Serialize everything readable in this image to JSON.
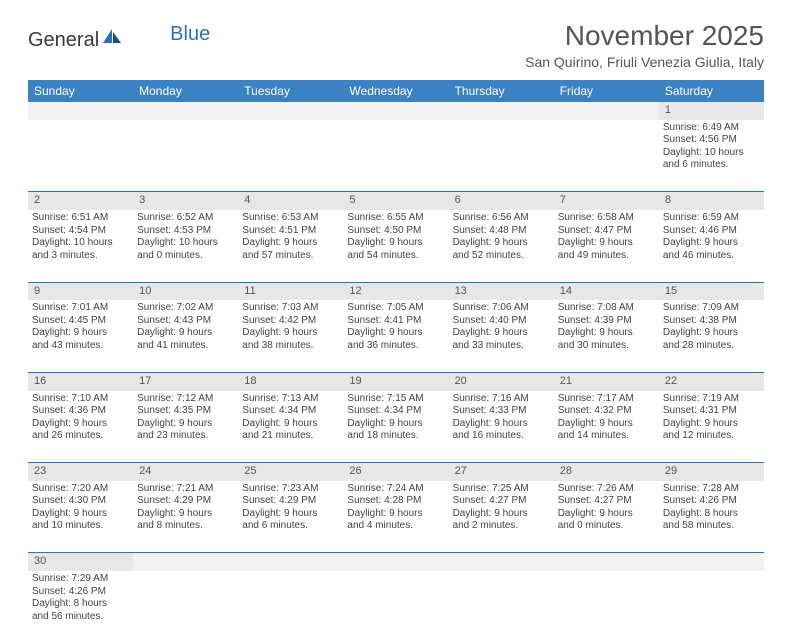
{
  "logo": {
    "general": "General",
    "blue": "Blue"
  },
  "title": "November 2025",
  "location": "San Quirino, Friuli Venezia Giulia, Italy",
  "weekdays": [
    "Sunday",
    "Monday",
    "Tuesday",
    "Wednesday",
    "Thursday",
    "Friday",
    "Saturday"
  ],
  "colors": {
    "header_bg": "#3b82c4",
    "header_text": "#ffffff",
    "border": "#2d6fb5",
    "daynum_bg": "#e7e7e7",
    "text": "#444444"
  },
  "rows": [
    [
      null,
      null,
      null,
      null,
      null,
      null,
      {
        "n": "1",
        "sunrise": "Sunrise: 6:49 AM",
        "sunset": "Sunset: 4:56 PM",
        "day1": "Daylight: 10 hours",
        "day2": "and 6 minutes."
      }
    ],
    [
      {
        "n": "2",
        "sunrise": "Sunrise: 6:51 AM",
        "sunset": "Sunset: 4:54 PM",
        "day1": "Daylight: 10 hours",
        "day2": "and 3 minutes."
      },
      {
        "n": "3",
        "sunrise": "Sunrise: 6:52 AM",
        "sunset": "Sunset: 4:53 PM",
        "day1": "Daylight: 10 hours",
        "day2": "and 0 minutes."
      },
      {
        "n": "4",
        "sunrise": "Sunrise: 6:53 AM",
        "sunset": "Sunset: 4:51 PM",
        "day1": "Daylight: 9 hours",
        "day2": "and 57 minutes."
      },
      {
        "n": "5",
        "sunrise": "Sunrise: 6:55 AM",
        "sunset": "Sunset: 4:50 PM",
        "day1": "Daylight: 9 hours",
        "day2": "and 54 minutes."
      },
      {
        "n": "6",
        "sunrise": "Sunrise: 6:56 AM",
        "sunset": "Sunset: 4:48 PM",
        "day1": "Daylight: 9 hours",
        "day2": "and 52 minutes."
      },
      {
        "n": "7",
        "sunrise": "Sunrise: 6:58 AM",
        "sunset": "Sunset: 4:47 PM",
        "day1": "Daylight: 9 hours",
        "day2": "and 49 minutes."
      },
      {
        "n": "8",
        "sunrise": "Sunrise: 6:59 AM",
        "sunset": "Sunset: 4:46 PM",
        "day1": "Daylight: 9 hours",
        "day2": "and 46 minutes."
      }
    ],
    [
      {
        "n": "9",
        "sunrise": "Sunrise: 7:01 AM",
        "sunset": "Sunset: 4:45 PM",
        "day1": "Daylight: 9 hours",
        "day2": "and 43 minutes."
      },
      {
        "n": "10",
        "sunrise": "Sunrise: 7:02 AM",
        "sunset": "Sunset: 4:43 PM",
        "day1": "Daylight: 9 hours",
        "day2": "and 41 minutes."
      },
      {
        "n": "11",
        "sunrise": "Sunrise: 7:03 AM",
        "sunset": "Sunset: 4:42 PM",
        "day1": "Daylight: 9 hours",
        "day2": "and 38 minutes."
      },
      {
        "n": "12",
        "sunrise": "Sunrise: 7:05 AM",
        "sunset": "Sunset: 4:41 PM",
        "day1": "Daylight: 9 hours",
        "day2": "and 36 minutes."
      },
      {
        "n": "13",
        "sunrise": "Sunrise: 7:06 AM",
        "sunset": "Sunset: 4:40 PM",
        "day1": "Daylight: 9 hours",
        "day2": "and 33 minutes."
      },
      {
        "n": "14",
        "sunrise": "Sunrise: 7:08 AM",
        "sunset": "Sunset: 4:39 PM",
        "day1": "Daylight: 9 hours",
        "day2": "and 30 minutes."
      },
      {
        "n": "15",
        "sunrise": "Sunrise: 7:09 AM",
        "sunset": "Sunset: 4:38 PM",
        "day1": "Daylight: 9 hours",
        "day2": "and 28 minutes."
      }
    ],
    [
      {
        "n": "16",
        "sunrise": "Sunrise: 7:10 AM",
        "sunset": "Sunset: 4:36 PM",
        "day1": "Daylight: 9 hours",
        "day2": "and 26 minutes."
      },
      {
        "n": "17",
        "sunrise": "Sunrise: 7:12 AM",
        "sunset": "Sunset: 4:35 PM",
        "day1": "Daylight: 9 hours",
        "day2": "and 23 minutes."
      },
      {
        "n": "18",
        "sunrise": "Sunrise: 7:13 AM",
        "sunset": "Sunset: 4:34 PM",
        "day1": "Daylight: 9 hours",
        "day2": "and 21 minutes."
      },
      {
        "n": "19",
        "sunrise": "Sunrise: 7:15 AM",
        "sunset": "Sunset: 4:34 PM",
        "day1": "Daylight: 9 hours",
        "day2": "and 18 minutes."
      },
      {
        "n": "20",
        "sunrise": "Sunrise: 7:16 AM",
        "sunset": "Sunset: 4:33 PM",
        "day1": "Daylight: 9 hours",
        "day2": "and 16 minutes."
      },
      {
        "n": "21",
        "sunrise": "Sunrise: 7:17 AM",
        "sunset": "Sunset: 4:32 PM",
        "day1": "Daylight: 9 hours",
        "day2": "and 14 minutes."
      },
      {
        "n": "22",
        "sunrise": "Sunrise: 7:19 AM",
        "sunset": "Sunset: 4:31 PM",
        "day1": "Daylight: 9 hours",
        "day2": "and 12 minutes."
      }
    ],
    [
      {
        "n": "23",
        "sunrise": "Sunrise: 7:20 AM",
        "sunset": "Sunset: 4:30 PM",
        "day1": "Daylight: 9 hours",
        "day2": "and 10 minutes."
      },
      {
        "n": "24",
        "sunrise": "Sunrise: 7:21 AM",
        "sunset": "Sunset: 4:29 PM",
        "day1": "Daylight: 9 hours",
        "day2": "and 8 minutes."
      },
      {
        "n": "25",
        "sunrise": "Sunrise: 7:23 AM",
        "sunset": "Sunset: 4:29 PM",
        "day1": "Daylight: 9 hours",
        "day2": "and 6 minutes."
      },
      {
        "n": "26",
        "sunrise": "Sunrise: 7:24 AM",
        "sunset": "Sunset: 4:28 PM",
        "day1": "Daylight: 9 hours",
        "day2": "and 4 minutes."
      },
      {
        "n": "27",
        "sunrise": "Sunrise: 7:25 AM",
        "sunset": "Sunset: 4:27 PM",
        "day1": "Daylight: 9 hours",
        "day2": "and 2 minutes."
      },
      {
        "n": "28",
        "sunrise": "Sunrise: 7:26 AM",
        "sunset": "Sunset: 4:27 PM",
        "day1": "Daylight: 9 hours",
        "day2": "and 0 minutes."
      },
      {
        "n": "29",
        "sunrise": "Sunrise: 7:28 AM",
        "sunset": "Sunset: 4:26 PM",
        "day1": "Daylight: 8 hours",
        "day2": "and 58 minutes."
      }
    ],
    [
      {
        "n": "30",
        "sunrise": "Sunrise: 7:29 AM",
        "sunset": "Sunset: 4:26 PM",
        "day1": "Daylight: 8 hours",
        "day2": "and 56 minutes."
      },
      null,
      null,
      null,
      null,
      null,
      null
    ]
  ]
}
